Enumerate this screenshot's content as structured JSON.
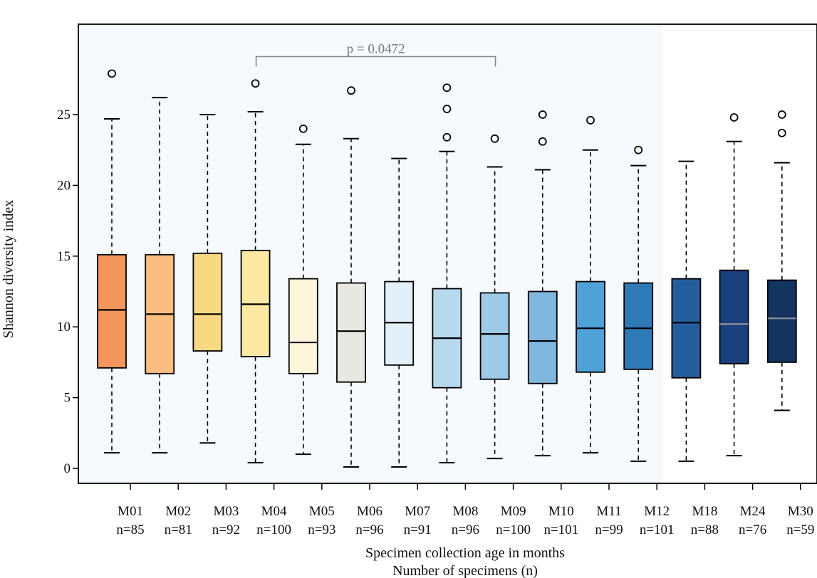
{
  "chart_data": {
    "type": "box",
    "title": "",
    "ylabel": "Shannon diversity index",
    "xlabel_line1": "Specimen collection age in months",
    "xlabel_line2": "Number of specimens (n)",
    "ylim": [
      -1.2,
      31
    ],
    "yticks": [
      0,
      5,
      10,
      15,
      20,
      25
    ],
    "annotation": {
      "text": "p = 0.0472",
      "from": "M04",
      "to": "M09",
      "y": 29.1
    },
    "boxes": [
      {
        "label": "M01",
        "n": "n=85",
        "color": "#f4955b",
        "median_color": "#000000",
        "whisker_low": 1.1,
        "q1": 7.1,
        "median": 11.2,
        "q3": 15.1,
        "whisker_high": 24.7,
        "outliers": [
          27.9
        ]
      },
      {
        "label": "M02",
        "n": "n=81",
        "color": "#fbbd80",
        "median_color": "#000000",
        "whisker_low": 1.1,
        "q1": 6.7,
        "median": 10.9,
        "q3": 15.1,
        "whisker_high": 26.2,
        "outliers": []
      },
      {
        "label": "M03",
        "n": "n=92",
        "color": "#f9d882",
        "median_color": "#000000",
        "whisker_low": 1.8,
        "q1": 8.3,
        "median": 10.9,
        "q3": 15.2,
        "whisker_high": 25.0,
        "outliers": []
      },
      {
        "label": "M04",
        "n": "n=100",
        "color": "#fde8a4",
        "median_color": "#000000",
        "whisker_low": 0.4,
        "q1": 7.9,
        "median": 11.6,
        "q3": 15.4,
        "whisker_high": 25.2,
        "outliers": [
          27.2
        ]
      },
      {
        "label": "M05",
        "n": "n=93",
        "color": "#fdf5dc",
        "median_color": "#000000",
        "whisker_low": 1.0,
        "q1": 6.7,
        "median": 8.9,
        "q3": 13.4,
        "whisker_high": 22.9,
        "outliers": [
          24.0
        ]
      },
      {
        "label": "M06",
        "n": "n=96",
        "color": "#e8e8e2",
        "median_color": "#000000",
        "whisker_low": 0.1,
        "q1": 6.1,
        "median": 9.7,
        "q3": 13.1,
        "whisker_high": 23.3,
        "outliers": [
          26.7
        ]
      },
      {
        "label": "M07",
        "n": "n=91",
        "color": "#e3f0f9",
        "median_color": "#000000",
        "whisker_low": 0.1,
        "q1": 7.3,
        "median": 10.3,
        "q3": 13.2,
        "whisker_high": 21.9,
        "outliers": []
      },
      {
        "label": "M08",
        "n": "n=96",
        "color": "#b7d9ee",
        "median_color": "#000000",
        "whisker_low": 0.4,
        "q1": 5.7,
        "median": 9.2,
        "q3": 12.7,
        "whisker_high": 22.4,
        "outliers": [
          23.4,
          25.4,
          26.9
        ]
      },
      {
        "label": "M09",
        "n": "n=100",
        "color": "#9dcae8",
        "median_color": "#000000",
        "whisker_low": 0.7,
        "q1": 6.3,
        "median": 9.5,
        "q3": 12.4,
        "whisker_high": 21.3,
        "outliers": [
          23.3
        ]
      },
      {
        "label": "M10",
        "n": "n=101",
        "color": "#7eb8df",
        "median_color": "#000000",
        "whisker_low": 0.9,
        "q1": 6.0,
        "median": 9.0,
        "q3": 12.5,
        "whisker_high": 21.1,
        "outliers": [
          23.1,
          25.0
        ]
      },
      {
        "label": "M11",
        "n": "n=99",
        "color": "#4ea2d6",
        "median_color": "#000000",
        "whisker_low": 1.1,
        "q1": 6.8,
        "median": 9.9,
        "q3": 13.2,
        "whisker_high": 22.5,
        "outliers": [
          24.6
        ]
      },
      {
        "label": "M12",
        "n": "n=101",
        "color": "#2e7ab6",
        "median_color": "#000000",
        "whisker_low": 0.5,
        "q1": 7.0,
        "median": 9.9,
        "q3": 13.1,
        "whisker_high": 21.4,
        "outliers": [
          22.5
        ]
      },
      {
        "label": "M18",
        "n": "n=88",
        "color": "#225e9c",
        "median_color": "#000000",
        "whisker_low": 0.5,
        "q1": 6.4,
        "median": 10.3,
        "q3": 13.4,
        "whisker_high": 21.7,
        "outliers": []
      },
      {
        "label": "M24",
        "n": "n=76",
        "color": "#1a3f7e",
        "median_color": "#8a8f98",
        "whisker_low": 0.9,
        "q1": 7.4,
        "median": 10.2,
        "q3": 14.0,
        "whisker_high": 23.1,
        "outliers": [
          24.8
        ]
      },
      {
        "label": "M30",
        "n": "n=59",
        "color": "#133461",
        "median_color": "#8a8f98",
        "whisker_low": 4.1,
        "q1": 7.5,
        "median": 10.6,
        "q3": 13.3,
        "whisker_high": 21.6,
        "outliers": [
          23.7,
          25.0
        ]
      }
    ],
    "colors": {
      "shade": "#f6f9fd",
      "axis": "#000000",
      "bracket": "#888888"
    }
  }
}
